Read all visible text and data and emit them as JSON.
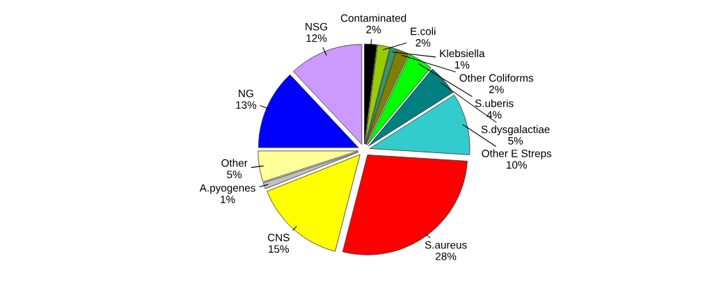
{
  "chart_data": {
    "type": "pie",
    "categories": [
      "Contaminated",
      "E.coli",
      "Klebsiella",
      "Other Coliforms",
      "S.uberis",
      "S.dysgalactiae",
      "Other E Streps",
      "S.aureus",
      "CNS",
      "A.pyogenes",
      "Other",
      "NG",
      "NSG"
    ],
    "values": [
      2,
      2,
      1,
      2,
      4,
      5,
      10,
      28,
      15,
      1,
      5,
      13,
      12
    ],
    "value_labels": [
      "2%",
      "2%",
      "1%",
      "2%",
      "4%",
      "5%",
      "10%",
      "28%",
      "15%",
      "1%",
      "5%",
      "13%",
      "12%"
    ],
    "colors": [
      "#000000",
      "#99cc00",
      "#339966",
      "#808000",
      "#00ff00",
      "#008080",
      "#33cccc",
      "#ff0000",
      "#ffff00",
      "#c0c0c0",
      "#ffff99",
      "#0000ff",
      "#cc99ff"
    ]
  }
}
